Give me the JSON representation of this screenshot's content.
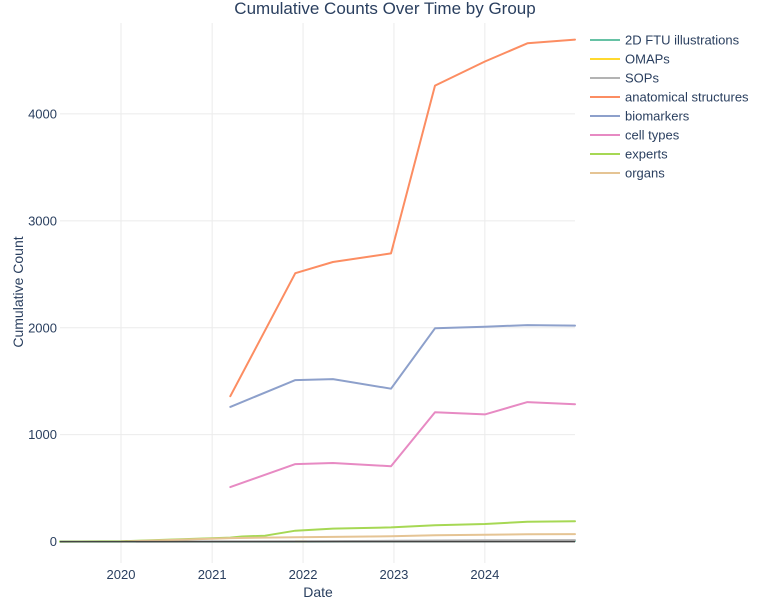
{
  "chart_data": {
    "type": "line",
    "title": "Cumulative Counts Over Time by Group",
    "xlabel": "Date",
    "ylabel": "Cumulative Count",
    "xlim": [
      "2019-05-01",
      "2024-12-28"
    ],
    "ylim": [
      -200,
      4850
    ],
    "x_ticks": [
      "2020-01-01",
      "2021-01-01",
      "2022-01-01",
      "2023-01-01",
      "2024-01-01"
    ],
    "x_tick_labels": [
      "2020",
      "2021",
      "2022",
      "2023",
      "2024"
    ],
    "y_ticks": [
      0,
      1000,
      2000,
      3000,
      4000
    ],
    "y_tick_labels": [
      "0",
      "1000",
      "2000",
      "3000",
      "4000"
    ],
    "grid": true,
    "legend_position": "right",
    "series": [
      {
        "name": "2D FTU illustrations",
        "color": "#66c2a5",
        "x": [
          "2019-05-01",
          "2020-01-01",
          "2021-03-15",
          "2022-01-01",
          "2023-01-01",
          "2024-01-01",
          "2024-12-28"
        ],
        "y": [
          0,
          0,
          0,
          0,
          2,
          4,
          6
        ]
      },
      {
        "name": "OMAPs",
        "color": "#ffd92f",
        "x": [
          "2021-12-01",
          "2022-01-15"
        ],
        "y": [
          2,
          2
        ]
      },
      {
        "name": "SOPs",
        "color": "#b3b3b3",
        "x": [
          "2020-03-01",
          "2021-03-15",
          "2022-01-01",
          "2023-01-01",
          "2024-01-01",
          "2024-12-28"
        ],
        "y": [
          0,
          2,
          4,
          8,
          12,
          14
        ]
      },
      {
        "name": "anatomical structures",
        "color": "#fc8d62",
        "x": [
          "2021-03-15",
          "2021-12-01",
          "2022-05-01",
          "2022-12-20",
          "2023-06-15",
          "2024-01-01",
          "2024-06-20",
          "2024-12-28"
        ],
        "y": [
          1360,
          2510,
          2615,
          2695,
          4265,
          4490,
          4660,
          4695
        ]
      },
      {
        "name": "biomarkers",
        "color": "#8da0cb",
        "x": [
          "2021-03-15",
          "2021-12-01",
          "2022-05-01",
          "2022-12-20",
          "2023-06-15",
          "2024-01-01",
          "2024-06-20",
          "2024-12-28"
        ],
        "y": [
          1260,
          1510,
          1520,
          1430,
          1995,
          2010,
          2025,
          2020
        ]
      },
      {
        "name": "cell types",
        "color": "#e78ac3",
        "x": [
          "2021-03-15",
          "2021-12-01",
          "2022-05-01",
          "2022-12-20",
          "2023-06-15",
          "2024-01-01",
          "2024-06-20",
          "2024-12-28"
        ],
        "y": [
          510,
          725,
          735,
          705,
          1210,
          1190,
          1305,
          1285
        ]
      },
      {
        "name": "experts",
        "color": "#a6d854",
        "x": [
          "2019-05-01",
          "2020-01-01",
          "2020-06-01",
          "2021-03-15",
          "2021-05-01",
          "2021-08-01",
          "2021-12-01",
          "2022-05-01",
          "2022-12-20",
          "2023-06-15",
          "2024-01-01",
          "2024-06-20",
          "2024-12-28"
        ],
        "y": [
          0,
          3,
          15,
          38,
          48,
          55,
          102,
          122,
          133,
          153,
          165,
          185,
          190
        ]
      },
      {
        "name": "organs",
        "color": "#e5c494",
        "x": [
          "2020-01-01",
          "2021-03-15",
          "2021-12-01",
          "2022-05-01",
          "2022-12-20",
          "2023-06-15",
          "2024-01-01",
          "2024-06-20",
          "2024-12-28"
        ],
        "y": [
          0,
          33,
          40,
          44,
          50,
          60,
          65,
          68,
          70
        ]
      }
    ]
  }
}
